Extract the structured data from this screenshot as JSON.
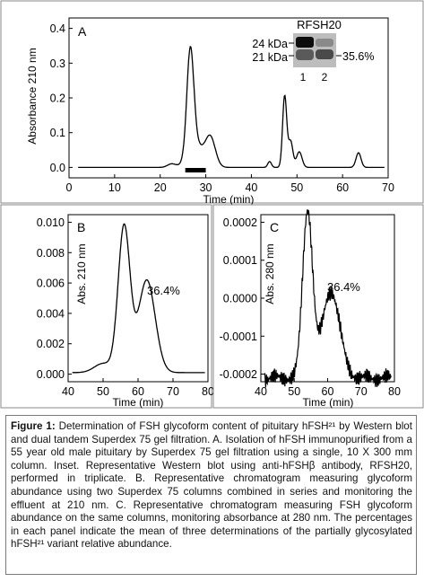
{
  "figure": {
    "caption_lead": "Figure 1:",
    "caption_text": "Determination of FSH glycoform content of pituitary hFSH²¹ by Western blot and dual tandem Superdex 75 gel filtration. A. Isolation of hFSH immunopurified from a 55 year old male pituitary by Superdex 75 gel filtration using a single, 10 X 300 mm column. Inset. Representative Western blot using anti-hFSHβ antibody, RFSH20, performed in triplicate. B. Representative chromatogram measuring glycoform abundance using two Superdex 75 columns combined in series and monitoring the effluent at 210 nm. C. Representative chromatogram measuring FSH glycoform abundance on the same columns, monitoring absorbance at 280 nm. The percentages in each panel indicate the mean of three determinations of the partially glycosylated hFSH²¹ variant relative abundance."
  },
  "chart_data": [
    {
      "panel": "A",
      "type": "line",
      "xlabel": "Time (min)",
      "ylabel": "Absorbance 210 nm",
      "xlim": [
        0,
        70
      ],
      "ylim": [
        -0.03,
        0.43
      ],
      "xticks": [
        "0",
        "10",
        "20",
        "30",
        "40",
        "50",
        "60",
        "70"
      ],
      "yticks": [
        "0.0",
        "0.1",
        "0.2",
        "0.3",
        "0.4"
      ],
      "peaks": [
        {
          "x": 22.5,
          "y": 0.01,
          "w": 0.9
        },
        {
          "x": 26.6,
          "y": 0.29,
          "w": 0.75
        },
        {
          "x": 27.6,
          "y": 0.07,
          "w": 1.6
        },
        {
          "x": 31.0,
          "y": 0.085,
          "w": 1.1
        },
        {
          "x": 44.0,
          "y": 0.017,
          "w": 0.4
        },
        {
          "x": 47.3,
          "y": 0.205,
          "w": 0.45
        },
        {
          "x": 48.6,
          "y": 0.075,
          "w": 0.5
        },
        {
          "x": 50.5,
          "y": 0.045,
          "w": 0.6
        },
        {
          "x": 63.5,
          "y": 0.042,
          "w": 0.55
        }
      ],
      "baseline": 0.0,
      "annotation": {
        "label": "collection bar",
        "x_start": 25.5,
        "x_end": 30.0
      },
      "inset": {
        "title": "RFSH20",
        "bands": [
          "24 kDa",
          "21 kDa"
        ],
        "lanes": [
          "1",
          "2"
        ],
        "percent": "35.6%"
      }
    },
    {
      "panel": "B",
      "type": "line",
      "xlabel": "Time (min)",
      "ylabel": "Abs. 210 nm",
      "xlim": [
        40,
        80
      ],
      "ylim": [
        -0.0005,
        0.0105
      ],
      "xticks": [
        "40",
        "50",
        "60",
        "70",
        "80"
      ],
      "yticks": [
        "0.000",
        "0.002",
        "0.004",
        "0.006",
        "0.008",
        "0.010"
      ],
      "peaks": [
        {
          "x": 56.0,
          "y": 0.0096,
          "w": 1.7
        },
        {
          "x": 62.5,
          "y": 0.0061,
          "w": 2.4
        },
        {
          "x": 50.0,
          "y": 0.0006,
          "w": 2.5
        }
      ],
      "baseline": 0.0001,
      "percent": "36.4%"
    },
    {
      "panel": "C",
      "type": "line",
      "xlabel": "Time (min)",
      "ylabel": "Abs. 280 nm",
      "xlim": [
        40,
        80
      ],
      "ylim": [
        -0.00022,
        0.00022
      ],
      "xticks": [
        "40",
        "50",
        "60",
        "70",
        "80"
      ],
      "yticks": [
        "0.0002",
        "0.0001",
        "0.0000",
        "-0.0001",
        "-0.0002"
      ],
      "yvalues": [
        0.0002,
        0.0001,
        0.0,
        -0.0001,
        -0.0002
      ],
      "peaks": [
        {
          "x": 54.0,
          "y": 0.00044,
          "w": 1.5
        },
        {
          "x": 61.0,
          "y": 0.00023,
          "w": 2.6
        }
      ],
      "baseline": -0.00021,
      "percent": "36.4%"
    }
  ]
}
